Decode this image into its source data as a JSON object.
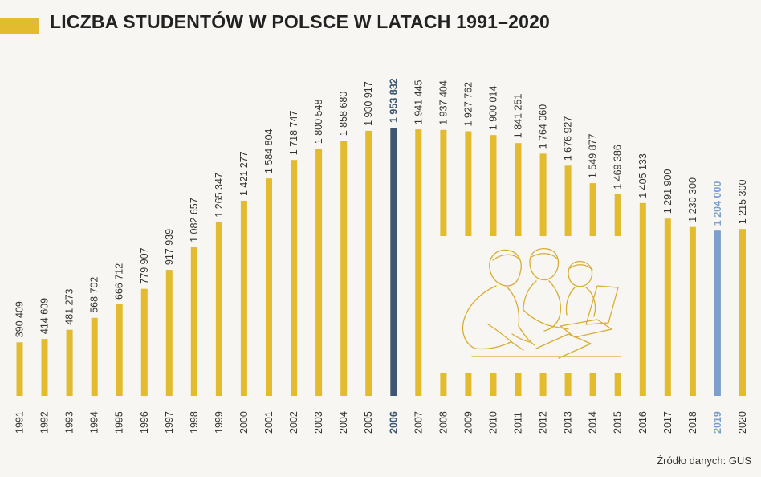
{
  "title": "LICZBA STUDENTÓW W POLSCE W LATACH 1991–2020",
  "source": "Źródło danych: GUS",
  "colors": {
    "bar": "#e2bb2e",
    "bar_highlight_max": "#3e566f",
    "bar_highlight_2019": "#7c9fcb",
    "background": "#f7f6f2",
    "text": "#333333"
  },
  "illustration_icon": "students-studying-line-illustration",
  "chart_data": {
    "type": "bar",
    "title": "LICZBA STUDENTÓW W POLSCE W LATACH 1991–2020",
    "categories": [
      "1991",
      "1992",
      "1993",
      "1994",
      "1995",
      "1996",
      "1997",
      "1998",
      "1999",
      "2000",
      "2001",
      "2002",
      "2003",
      "2004",
      "2005",
      "2006",
      "2007",
      "2008",
      "2009",
      "2010",
      "2011",
      "2012",
      "2013",
      "2014",
      "2015",
      "2016",
      "2017",
      "2018",
      "2019",
      "2020"
    ],
    "values": [
      390409,
      414609,
      481273,
      568702,
      666712,
      779907,
      917939,
      1082657,
      1265347,
      1421277,
      1584804,
      1718747,
      1800548,
      1858680,
      1930917,
      1953832,
      1941445,
      1937404,
      1927762,
      1900014,
      1841251,
      1764060,
      1676927,
      1549877,
      1469386,
      1405133,
      1291900,
      1230300,
      1204000,
      1215300
    ],
    "labels": [
      "390 409",
      "414 609",
      "481 273",
      "568 702",
      "666 712",
      "779 907",
      "917 939",
      "1 082 657",
      "1 265 347",
      "1 421 277",
      "1 584 804",
      "1 718 747",
      "1 800 548",
      "1 858 680",
      "1 930 917",
      "1 953 832",
      "1 941 445",
      "1 937 404",
      "1 927 762",
      "1 900 014",
      "1 841 251",
      "1 764 060",
      "1 676 927",
      "1 549 877",
      "1 469 386",
      "1 405 133",
      "1 291 900",
      "1 230 300",
      "1 204 000",
      "1 215 300"
    ],
    "highlight": {
      "2006": "max",
      "2019": "current"
    },
    "ylim": [
      0,
      1953832
    ],
    "grid": false,
    "xlabel": "",
    "ylabel": ""
  }
}
